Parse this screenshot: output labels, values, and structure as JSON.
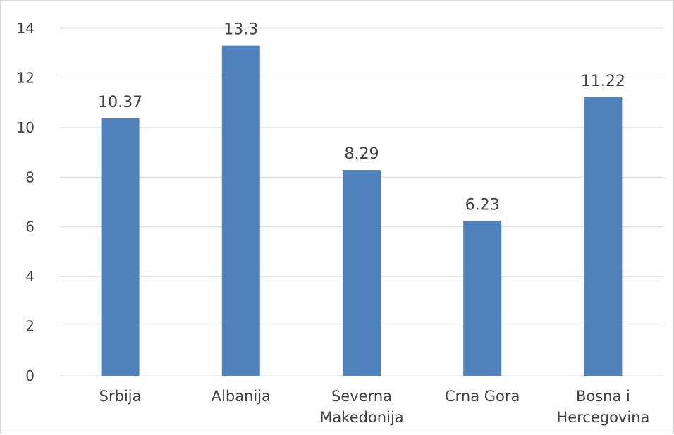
{
  "chart_data": {
    "type": "bar",
    "categories": [
      [
        "Srbija"
      ],
      [
        "Albanija"
      ],
      [
        "Severna",
        "Makedonija"
      ],
      [
        "Crna Gora"
      ],
      [
        "Bosna i",
        "Hercegovina"
      ]
    ],
    "values": [
      10.37,
      13.3,
      8.29,
      6.23,
      11.22
    ],
    "data_labels": [
      "10.37",
      "13.3",
      "8.29",
      "6.23",
      "11.22"
    ],
    "ylim": [
      0,
      14
    ],
    "yticks": [
      0,
      2,
      4,
      6,
      8,
      10,
      12,
      14
    ],
    "title": "",
    "xlabel": "",
    "ylabel": "",
    "grid": true,
    "legend": "none",
    "colors": {
      "bar": "#4f81bd",
      "grid": "#d9d9d9",
      "text": "#404040"
    }
  }
}
